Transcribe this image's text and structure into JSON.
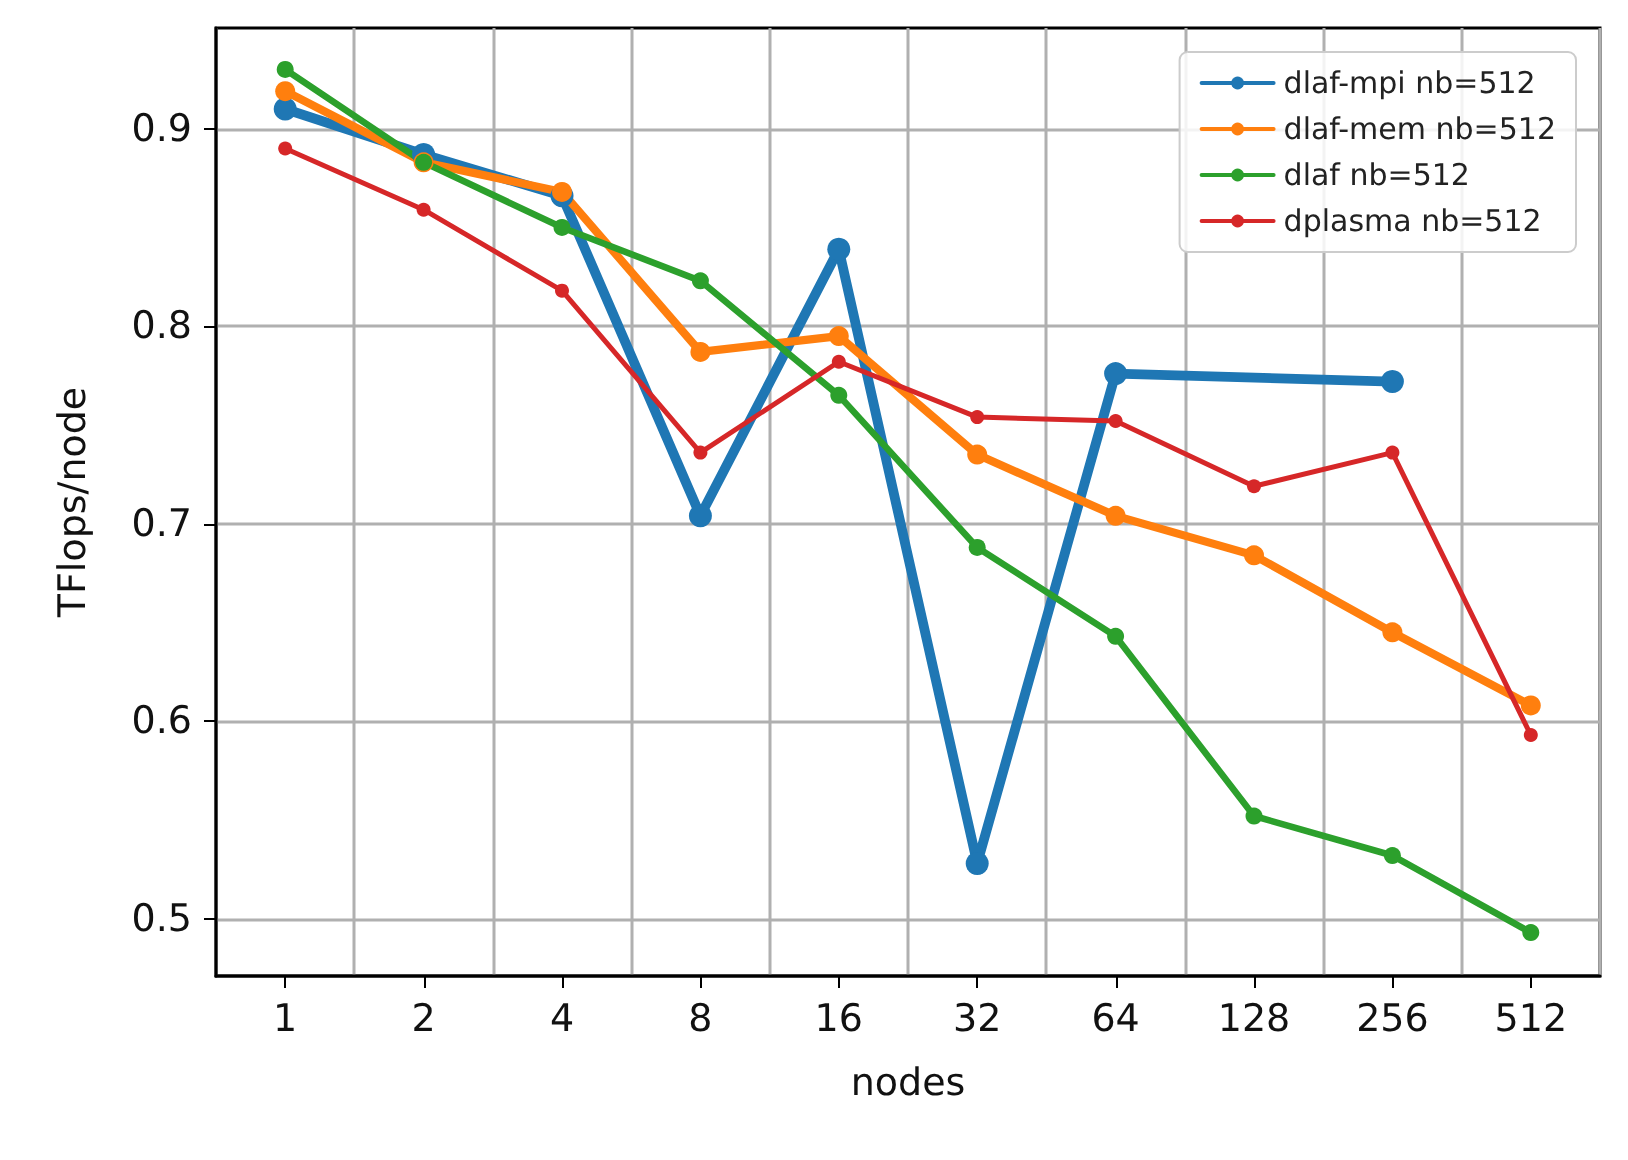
{
  "chart_data": {
    "type": "line",
    "xlabel": "nodes",
    "ylabel": "TFlops/node",
    "categories": [
      "1",
      "2",
      "4",
      "8",
      "16",
      "32",
      "64",
      "128",
      "256",
      "512"
    ],
    "series": [
      {
        "name": "dlaf-mpi nb=512",
        "color": "#1f77b4",
        "values": [
          0.91,
          0.887,
          0.866,
          0.704,
          0.839,
          0.528,
          0.776,
          null,
          0.772,
          null
        ]
      },
      {
        "name": "dlaf-mem nb=512",
        "color": "#ff7f0e",
        "values": [
          0.919,
          0.883,
          0.868,
          0.787,
          0.795,
          0.735,
          0.704,
          0.684,
          0.645,
          0.608
        ]
      },
      {
        "name": "dlaf nb=512",
        "color": "#2ca02c",
        "values": [
          0.93,
          0.883,
          0.85,
          0.823,
          0.765,
          0.688,
          0.643,
          0.552,
          0.532,
          0.493
        ]
      },
      {
        "name": "dplasma nb=512",
        "color": "#d62728",
        "values": [
          0.89,
          0.859,
          0.818,
          0.736,
          0.782,
          0.754,
          0.752,
          0.719,
          0.736,
          0.593
        ]
      }
    ],
    "ylim": [
      0.471,
      0.951
    ],
    "yticks": [
      0.5,
      0.6,
      0.7,
      0.8,
      0.9
    ],
    "grid": true,
    "legend": "top right",
    "marker": "circle",
    "line_style": "solid"
  }
}
